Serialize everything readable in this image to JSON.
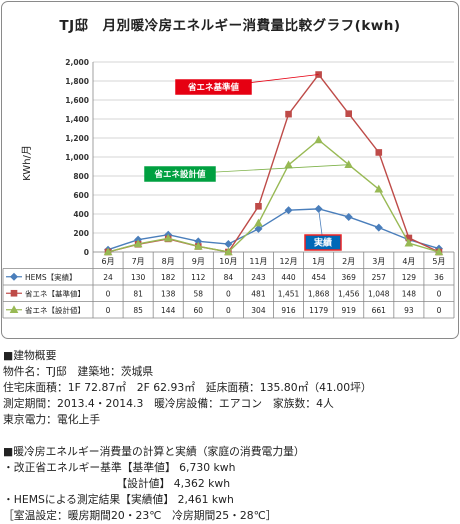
{
  "title": "TJ邸　月別暖冷房エネルギー消費量比較グラフ(kwh)",
  "chart_data": {
    "type": "line",
    "ylabel": "KWh/月",
    "ylim": [
      0,
      2000
    ],
    "yticks": [
      "0",
      "200",
      "400",
      "600",
      "800",
      "1,000",
      "1,200",
      "1,400",
      "1,600",
      "1,800",
      "2,000"
    ],
    "categories": [
      "6月",
      "7月",
      "8月",
      "9月",
      "10月",
      "11月",
      "12月",
      "1月",
      "2月",
      "3月",
      "4月",
      "5月"
    ],
    "grid": true,
    "series": [
      {
        "name": "HEMS【実績】",
        "color": "#4a7ebb",
        "marker": "diamond",
        "values": [
          24,
          130,
          182,
          112,
          84,
          243,
          440,
          454,
          369,
          257,
          129,
          36
        ],
        "labels": [
          "24",
          "130",
          "182",
          "112",
          "84",
          "243",
          "440",
          "454",
          "369",
          "257",
          "129",
          "36"
        ]
      },
      {
        "name": "省エネ【基準値】",
        "color": "#be4b48",
        "marker": "square",
        "values": [
          0,
          81,
          138,
          58,
          0,
          481,
          1451,
          1868,
          1456,
          1048,
          148,
          0
        ],
        "labels": [
          "0",
          "81",
          "138",
          "58",
          "0",
          "481",
          "1,451",
          "1,868",
          "1,456",
          "1,048",
          "148",
          "0"
        ]
      },
      {
        "name": "省エネ【設計値】",
        "color": "#98b954",
        "marker": "triangle",
        "values": [
          0,
          85,
          144,
          60,
          0,
          304,
          916,
          1179,
          919,
          661,
          93,
          0
        ],
        "labels": [
          "0",
          "85",
          "144",
          "60",
          "0",
          "304",
          "916",
          "1179",
          "919",
          "661",
          "93",
          "0"
        ]
      }
    ],
    "annotations": [
      {
        "text": "省エネ基準値",
        "series": 1,
        "bg": "#e60012",
        "border": "#e60012"
      },
      {
        "text": "省エネ設計値",
        "series": 2,
        "bg": "#00a040",
        "border": "#00a040"
      },
      {
        "text": "実績",
        "series": 0,
        "bg": "#0068b7",
        "border": "#ee2222"
      }
    ]
  },
  "info": {
    "lines": [
      "■建物概要",
      "物件名：TJ邸　建築地：茨城県",
      "住宅床面積：1F 72.87㎡　2F 62.93㎡　延床面積：135.80㎡（41.00坪）",
      "測定期間：2013.4・2014.3　暖冷房設備：エアコン　家族数：4人",
      "東京電力：電化上手",
      "",
      "■暖冷房エネルギー消費量の計算と実績（家庭の消費電力量）",
      "・改正省エネルギー基準【基準値】 6,730 kwh",
      "　　　　　　　　　　　【設計値】 4,362 kwh",
      "・HEMSによる測定結果【実績値】 2,461 kwh",
      "［室温設定：暖房期間20・23℃　冷房期間25・28℃］"
    ]
  }
}
